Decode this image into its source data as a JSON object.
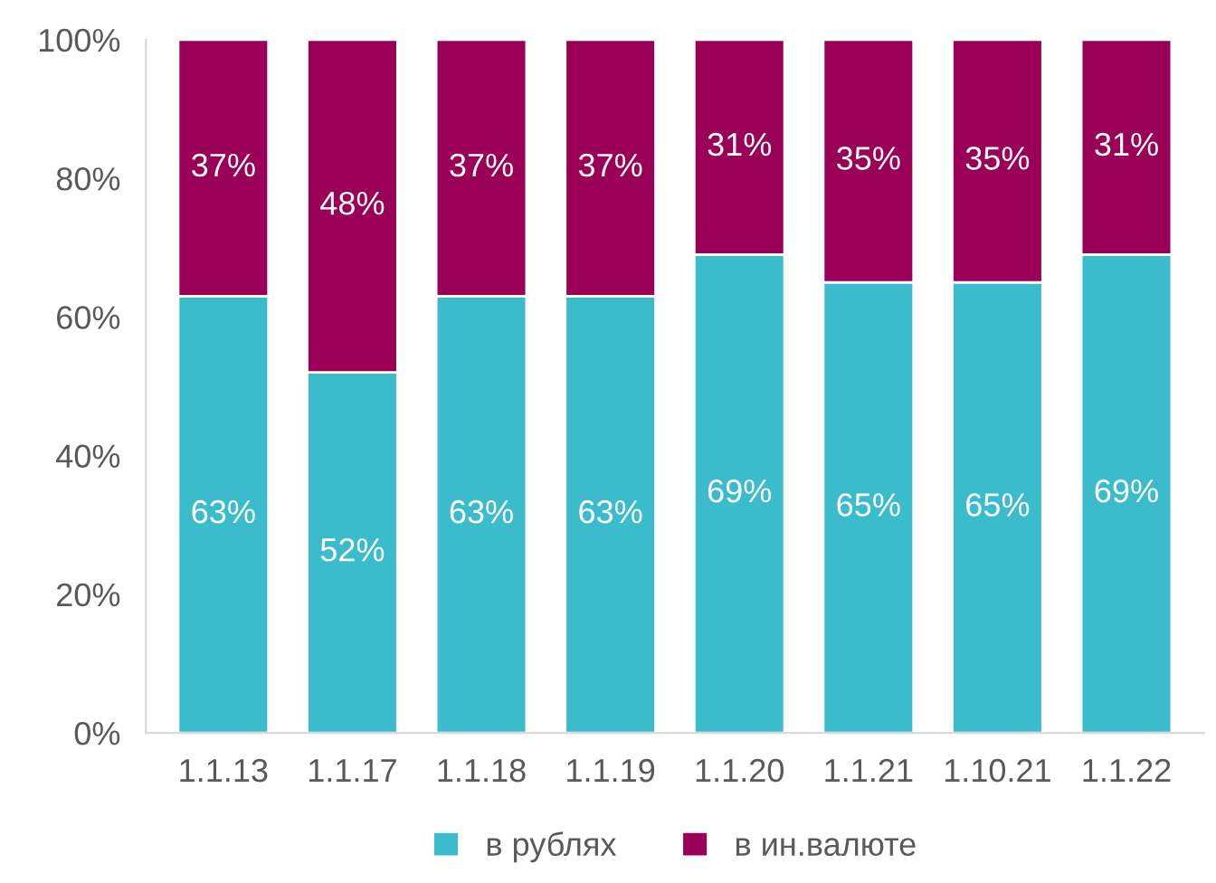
{
  "chart_data": {
    "type": "bar",
    "stacked": true,
    "categories": [
      "1.1.13",
      "1.1.17",
      "1.1.18",
      "1.1.19",
      "1.1.20",
      "1.1.21",
      "1.10.21",
      "1.1.22"
    ],
    "series": [
      {
        "name": "в рублях",
        "color": "#3bbccc",
        "values": [
          63,
          52,
          63,
          63,
          69,
          65,
          65,
          69
        ],
        "value_labels": [
          "63%",
          "52%",
          "63%",
          "63%",
          "69%",
          "65%",
          "65%",
          "69%"
        ]
      },
      {
        "name": "в ин.валюте",
        "color": "#9b0058",
        "values": [
          37,
          48,
          37,
          37,
          31,
          35,
          35,
          31
        ],
        "value_labels": [
          "37%",
          "48%",
          "37%",
          "37%",
          "31%",
          "35%",
          "35%",
          "31%"
        ]
      }
    ],
    "ylim": [
      0,
      100
    ],
    "yticks": [
      {
        "value": 0,
        "label": "0%"
      },
      {
        "value": 20,
        "label": "20%"
      },
      {
        "value": 40,
        "label": "40%"
      },
      {
        "value": 60,
        "label": "60%"
      },
      {
        "value": 80,
        "label": "80%"
      },
      {
        "value": 100,
        "label": "100%"
      }
    ],
    "grid": false,
    "legend": "bottom"
  }
}
